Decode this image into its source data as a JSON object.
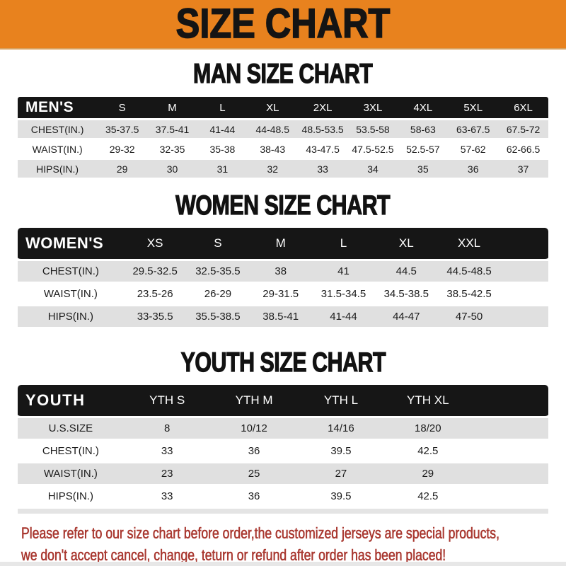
{
  "banner": {
    "title": "SIZE CHART"
  },
  "colors": {
    "banner_orange": "#E8821E",
    "bar_black": "#161616",
    "row_gray": "#E0E0E0",
    "footer_red": "#A93830"
  },
  "men": {
    "heading": "MAN SIZE CHART",
    "table": {
      "header_label": "MEN'S",
      "columns": [
        "S",
        "M",
        "L",
        "XL",
        "2XL",
        "3XL",
        "4XL",
        "5XL",
        "6XL"
      ],
      "rows": [
        {
          "label": "CHEST(IN.)",
          "values": [
            "35-37.5",
            "37.5-41",
            "41-44",
            "44-48.5",
            "48.5-53.5",
            "53.5-58",
            "58-63",
            "63-67.5",
            "67.5-72"
          ]
        },
        {
          "label": "WAIST(IN.)",
          "values": [
            "29-32",
            "32-35",
            "35-38",
            "38-43",
            "43-47.5",
            "47.5-52.5",
            "52.5-57",
            "57-62",
            "62-66.5"
          ]
        },
        {
          "label": "HIPS(IN.)",
          "values": [
            "29",
            "30",
            "31",
            "32",
            "33",
            "34",
            "35",
            "36",
            "37"
          ]
        }
      ]
    }
  },
  "women": {
    "heading": "WOMEN SIZE CHART",
    "table": {
      "header_label": "WOMEN'S",
      "columns": [
        "XS",
        "S",
        "M",
        "L",
        "XL",
        "XXL"
      ],
      "rows": [
        {
          "label": "CHEST(IN.)",
          "values": [
            "29.5-32.5",
            "32.5-35.5",
            "38",
            "41",
            "44.5",
            "44.5-48.5"
          ]
        },
        {
          "label": "WAIST(IN.)",
          "values": [
            "23.5-26",
            "26-29",
            "29-31.5",
            "31.5-34.5",
            "34.5-38.5",
            "38.5-42.5"
          ]
        },
        {
          "label": "HIPS(IN.)",
          "values": [
            "33-35.5",
            "35.5-38.5",
            "38.5-41",
            "41-44",
            "44-47",
            "47-50"
          ]
        }
      ]
    }
  },
  "youth": {
    "heading": "YOUTH SIZE CHART",
    "table": {
      "header_label": "YOUTH",
      "columns": [
        "YTH S",
        "YTH M",
        "YTH L",
        "YTH XL"
      ],
      "rows": [
        {
          "label": "U.S.SIZE",
          "values": [
            "8",
            "10/12",
            "14/16",
            "18/20"
          ]
        },
        {
          "label": "CHEST(IN.)",
          "values": [
            "33",
            "36",
            "39.5",
            "42.5"
          ]
        },
        {
          "label": "WAIST(IN.)",
          "values": [
            "23",
            "25",
            "27",
            "29"
          ]
        },
        {
          "label": "HIPS(IN.)",
          "values": [
            "33",
            "36",
            "39.5",
            "42.5"
          ]
        }
      ]
    }
  },
  "footer": {
    "line1": "Please refer to our size chart before order,the customized jerseys are special products,",
    "line2": "we don't accept cancel, change, teturn or refund after order has been placed!"
  }
}
